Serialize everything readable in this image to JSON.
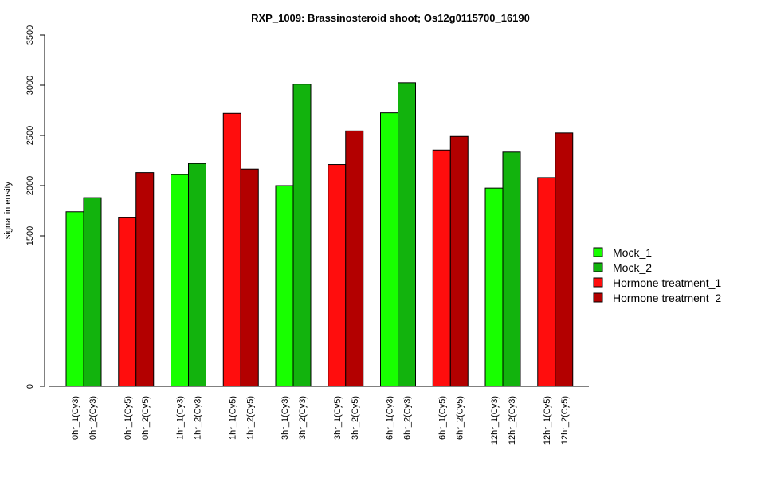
{
  "chart_data": {
    "type": "bar",
    "title": "RXP_1009: Brassinosteroid shoot; Os12g0115700_16190",
    "ylabel": "signal intensity",
    "xlabel": "",
    "ylim": [
      0,
      3500
    ],
    "y_ticks": [
      {
        "value": 0,
        "label": "0"
      },
      {
        "value": 1500,
        "label": "1500"
      },
      {
        "value": 2000,
        "label": "2000"
      },
      {
        "value": 2500,
        "label": "2500"
      },
      {
        "value": 3000,
        "label": "3000"
      },
      {
        "value": 3500,
        "label": "3500"
      }
    ],
    "legend_position": "right",
    "series": [
      {
        "name": "Mock_1",
        "color": "#18ff00"
      },
      {
        "name": "Mock_2",
        "color": "#12b30d"
      },
      {
        "name": "Hormone treatment_1",
        "color": "#ff0d0d"
      },
      {
        "name": "Hormone treatment_2",
        "color": "#b30000"
      }
    ],
    "groups": [
      {
        "bars": [
          {
            "label": "0hr_1(Cy3)",
            "value": 1740,
            "series": 0
          },
          {
            "label": "0hr_2(Cy3)",
            "value": 1880,
            "series": 1
          }
        ]
      },
      {
        "bars": [
          {
            "label": "0hr_1(Cy5)",
            "value": 1680,
            "series": 2
          },
          {
            "label": "0hr_2(Cy5)",
            "value": 2130,
            "series": 3
          }
        ]
      },
      {
        "bars": [
          {
            "label": "1hr_1(Cy3)",
            "value": 2110,
            "series": 0
          },
          {
            "label": "1hr_2(Cy3)",
            "value": 2220,
            "series": 1
          }
        ]
      },
      {
        "bars": [
          {
            "label": "1hr_1(Cy5)",
            "value": 2720,
            "series": 2
          },
          {
            "label": "1hr_2(Cy5)",
            "value": 2165,
            "series": 3
          }
        ]
      },
      {
        "bars": [
          {
            "label": "3hr_1(Cy3)",
            "value": 2000,
            "series": 0
          },
          {
            "label": "3hr_2(Cy3)",
            "value": 3010,
            "series": 1
          }
        ]
      },
      {
        "bars": [
          {
            "label": "3hr_1(Cy5)",
            "value": 2210,
            "series": 2
          },
          {
            "label": "3hr_2(Cy5)",
            "value": 2545,
            "series": 3
          }
        ]
      },
      {
        "bars": [
          {
            "label": "6hr_1(Cy3)",
            "value": 2725,
            "series": 0
          },
          {
            "label": "6hr_2(Cy3)",
            "value": 3025,
            "series": 1
          }
        ]
      },
      {
        "bars": [
          {
            "label": "6hr_1(Cy5)",
            "value": 2355,
            "series": 2
          },
          {
            "label": "6hr_2(Cy5)",
            "value": 2490,
            "series": 3
          }
        ]
      },
      {
        "bars": [
          {
            "label": "12hr_1(Cy3)",
            "value": 1975,
            "series": 0
          },
          {
            "label": "12hr_2(Cy3)",
            "value": 2335,
            "series": 1
          }
        ]
      },
      {
        "bars": [
          {
            "label": "12hr_1(Cy5)",
            "value": 2080,
            "series": 2
          },
          {
            "label": "12hr_2(Cy5)",
            "value": 2525,
            "series": 3
          }
        ]
      }
    ]
  }
}
